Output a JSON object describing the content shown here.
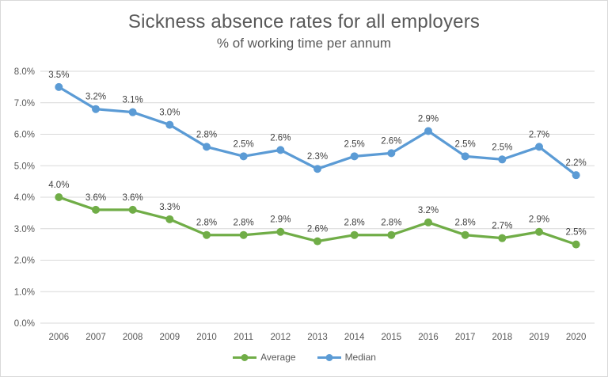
{
  "chart": {
    "title": "Sickness absence rates for all employers",
    "subtitle": "% of working time per annum"
  },
  "chart_data": {
    "type": "line",
    "title": "Sickness absence rates for all employers",
    "subtitle": "% of working time per annum",
    "categories": [
      "2006",
      "2007",
      "2008",
      "2009",
      "2010",
      "2011",
      "2012",
      "2013",
      "2014",
      "2015",
      "2016",
      "2017",
      "2018",
      "2019",
      "2020"
    ],
    "series": [
      {
        "name": "Average",
        "color": "#70AD47",
        "values": [
          4.0,
          3.6,
          3.6,
          3.3,
          2.8,
          2.8,
          2.9,
          2.6,
          2.8,
          2.8,
          3.2,
          2.8,
          2.7,
          2.9,
          2.5
        ],
        "labels": [
          "4.0%",
          "3.6%",
          "3.6%",
          "3.3%",
          "2.8%",
          "2.8%",
          "2.9%",
          "2.6%",
          "2.8%",
          "2.8%",
          "3.2%",
          "2.8%",
          "2.7%",
          "2.9%",
          "2.5%"
        ]
      },
      {
        "name": "Median",
        "color": "#5B9BD5",
        "values": [
          3.5,
          3.2,
          3.1,
          3.0,
          2.8,
          2.5,
          2.6,
          2.3,
          2.5,
          2.6,
          2.9,
          2.5,
          2.5,
          2.7,
          2.2
        ],
        "labels": [
          "3.5%",
          "3.2%",
          "3.1%",
          "3.0%",
          "2.8%",
          "2.5%",
          "2.6%",
          "2.3%",
          "2.5%",
          "2.6%",
          "2.9%",
          "2.5%",
          "2.5%",
          "2.7%",
          "2.2%"
        ],
        "plotted_values": [
          7.5,
          6.8,
          6.7,
          6.3,
          5.6,
          5.3,
          5.5,
          4.9,
          5.3,
          5.4,
          6.1,
          5.3,
          5.2,
          5.6,
          4.7
        ],
        "plot_note": "line is drawn higher on the y-axis than its printed data labels"
      }
    ],
    "y_axis": {
      "min": 0,
      "max": 8,
      "ticks": [
        "0.0%",
        "1.0%",
        "2.0%",
        "3.0%",
        "4.0%",
        "5.0%",
        "6.0%",
        "7.0%",
        "8.0%"
      ]
    },
    "x_axis": {
      "label": ""
    },
    "grid": true,
    "legend": {
      "position": "bottom",
      "entries": [
        "Average",
        "Median"
      ]
    },
    "colors": {
      "gridline": "#d9d9d9",
      "axis_text": "#595959",
      "data_label_text": "#404040",
      "title_text": "#595959"
    }
  }
}
